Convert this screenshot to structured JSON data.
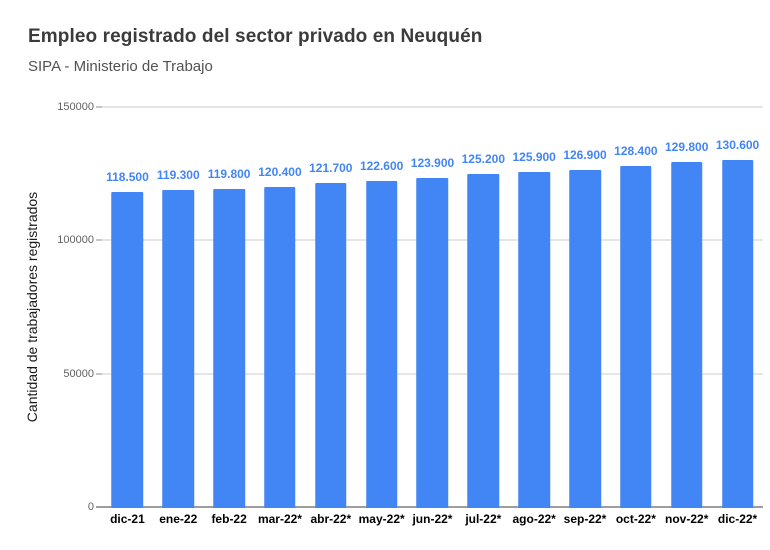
{
  "header": {
    "title": "Empleo registrado del sector privado en Neuquén",
    "subtitle": "SIPA - Ministerio de Trabajo"
  },
  "chart_data": {
    "type": "bar",
    "title": "Empleo registrado del sector privado en Neuquén",
    "subtitle": "SIPA - Ministerio de Trabajo",
    "xlabel": "",
    "ylabel": "Cantidad de trabajadores registrados",
    "categories": [
      "dic-21",
      "ene-22",
      "feb-22",
      "mar-22*",
      "abr-22*",
      "may-22*",
      "jun-22*",
      "jul-22*",
      "ago-22*",
      "sep-22*",
      "oct-22*",
      "nov-22*",
      "dic-22*"
    ],
    "values": [
      118500,
      119300,
      119800,
      120400,
      121700,
      122600,
      123900,
      125200,
      125900,
      126900,
      128400,
      129800,
      130600
    ],
    "data_labels": [
      "118.500",
      "119.300",
      "119.800",
      "120.400",
      "121.700",
      "122.600",
      "123.900",
      "125.200",
      "125.900",
      "126.900",
      "128.400",
      "129.800",
      "130.600"
    ],
    "ylim": [
      0,
      150000
    ],
    "yticks": [
      0,
      50000,
      100000,
      150000
    ],
    "ytick_labels": [
      "0",
      "50000",
      "100000",
      "150000"
    ],
    "grid": true,
    "legend": "none",
    "bar_color": "#4285f4",
    "label_color": "#4285f4"
  }
}
